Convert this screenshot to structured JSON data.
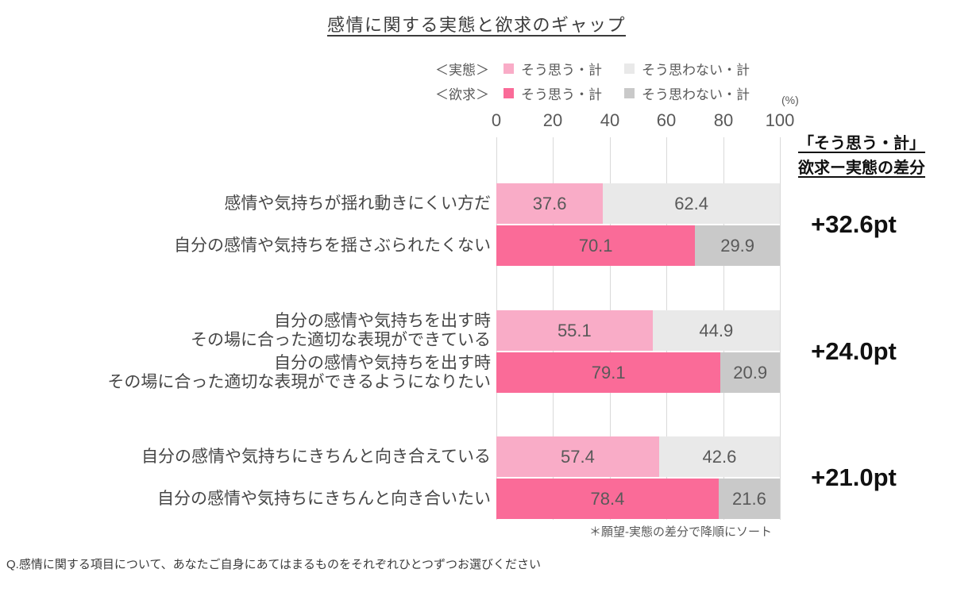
{
  "title": "感情に関する実態と欲求のギャップ",
  "legend": {
    "actual_prefix": "＜実態＞",
    "desire_prefix": "＜欲求＞",
    "agree_label": "そう思う・計",
    "disagree_label": "そう思わない・計"
  },
  "unit_label": "(%)",
  "diff_header": {
    "line1": "「そう思う・計」",
    "line2": "欲求ー実態の差分"
  },
  "footnote": "＊願望-実態の差分で降順にソート",
  "question": "Q.感情に関する項目について、あなたご自身にあてはまるものをそれぞれひとつずつお選びください",
  "colors": {
    "actual_agree": "#F9ACC7",
    "actual_disagree": "#E9E9E9",
    "desire_agree": "#FA6B98",
    "desire_disagree": "#C9C9C9",
    "gridline": "#D9D9D9"
  },
  "chart_data": {
    "type": "bar",
    "orientation": "horizontal",
    "stacked": true,
    "xlim": [
      0,
      100
    ],
    "x_ticks": [
      0,
      20,
      40,
      60,
      80,
      100
    ],
    "grid": true,
    "legend_position": "top",
    "sort_note": "sorted descending by desire minus actual difference",
    "pairs": [
      {
        "actual": {
          "label": "感情や気持ちが揺れ動きにくい方だ",
          "agree": 37.6,
          "disagree": 62.4
        },
        "desire": {
          "label": "自分の感情や気持ちを揺さぶられたくない",
          "agree": 70.1,
          "disagree": 29.9
        },
        "diff": "+32.6pt"
      },
      {
        "actual": {
          "label": "自分の感情や気持ちを出す時\nその場に合った適切な表現ができている",
          "agree": 55.1,
          "disagree": 44.9
        },
        "desire": {
          "label": "自分の感情や気持ちを出す時\nその場に合った適切な表現ができるようになりたい",
          "agree": 79.1,
          "disagree": 20.9
        },
        "diff": "+24.0pt"
      },
      {
        "actual": {
          "label": "自分の感情や気持ちにきちんと向き合えている",
          "agree": 57.4,
          "disagree": 42.6
        },
        "desire": {
          "label": "自分の感情や気持ちにきちんと向き合いたい",
          "agree": 78.4,
          "disagree": 21.6
        },
        "diff": "+21.0pt"
      }
    ]
  }
}
